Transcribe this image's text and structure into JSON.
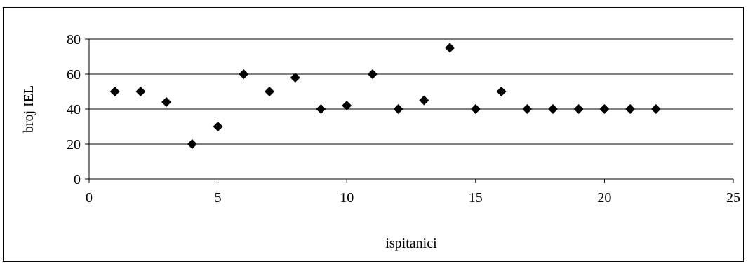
{
  "chart_data": {
    "type": "scatter",
    "title": "",
    "xlabel": "ispitanici",
    "ylabel": "broj IEL",
    "xlim": [
      0,
      25
    ],
    "ylim": [
      0,
      80
    ],
    "x_ticks": [
      0,
      5,
      10,
      15,
      20,
      25
    ],
    "y_ticks": [
      0,
      20,
      40,
      60,
      80
    ],
    "grid": "horizontal",
    "legend": "none",
    "marker": "diamond",
    "marker_color": "#000000",
    "series": [
      {
        "x": [
          1,
          2,
          3,
          4,
          5,
          6,
          7,
          8,
          9,
          10,
          11,
          12,
          13,
          14,
          15,
          16,
          17,
          18,
          19,
          20,
          21,
          22
        ],
        "y": [
          50,
          50,
          44,
          20,
          30,
          60,
          50,
          58,
          40,
          42,
          60,
          40,
          45,
          75,
          40,
          50,
          40,
          40,
          40,
          40,
          40,
          40
        ]
      }
    ]
  }
}
